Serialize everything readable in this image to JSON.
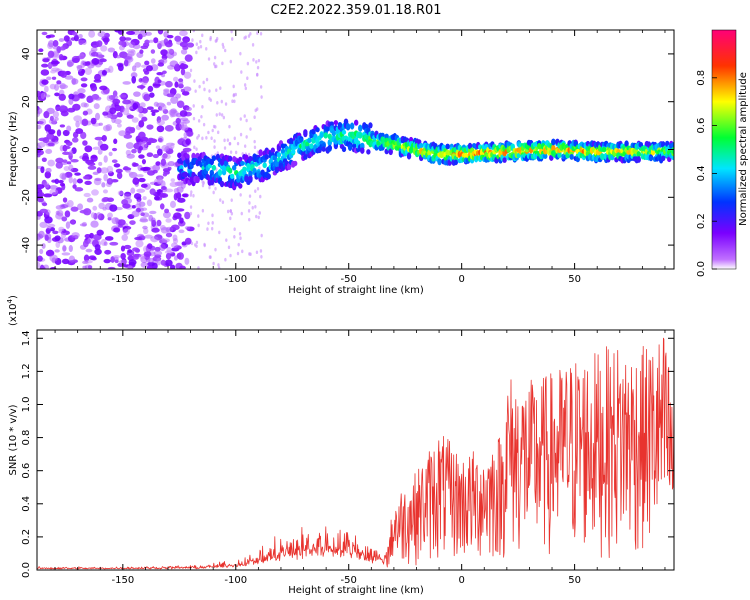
{
  "title": "C2E2.2022.359.01.18.R01",
  "chart_data": [
    {
      "type": "heatmap",
      "name": "spectrogram",
      "xlabel": "Height of straight line (km)",
      "ylabel": "Frequency (Hz)",
      "xlim": [
        -188,
        94
      ],
      "ylim": [
        -50,
        50
      ],
      "xticks": [
        -150,
        -100,
        -50,
        0,
        50
      ],
      "xtick_labels": [
        "-150",
        "-100",
        "-50",
        "0",
        "50"
      ],
      "yticks": [
        -40,
        -20,
        0,
        20,
        40
      ],
      "ytick_labels": [
        "-40",
        "-20",
        "0",
        "20",
        "40"
      ],
      "colorbar": {
        "label": "Normalized spectral amplitude",
        "range": [
          0,
          1
        ],
        "ticks": [
          0.0,
          0.2,
          0.4,
          0.6,
          0.8
        ],
        "tick_labels": [
          "0.0",
          "0.2",
          "0.4",
          "0.6",
          "0.8"
        ],
        "colors": [
          "#ffffff",
          "#7a00ff",
          "#0033ff",
          "#00e5ff",
          "#00ff33",
          "#ffff00",
          "#ff3300",
          "#ff0077"
        ]
      },
      "signal_track": [
        {
          "x": -120,
          "freq": -8,
          "amp": 0.35
        },
        {
          "x": -110,
          "freq": -8,
          "amp": 0.45
        },
        {
          "x": -100,
          "freq": -10,
          "amp": 0.5
        },
        {
          "x": -85,
          "freq": -6,
          "amp": 0.45
        },
        {
          "x": -70,
          "freq": 2,
          "amp": 0.5
        },
        {
          "x": -60,
          "freq": 5,
          "amp": 0.5
        },
        {
          "x": -50,
          "freq": 6,
          "amp": 0.55
        },
        {
          "x": -40,
          "freq": 4,
          "amp": 0.6
        },
        {
          "x": -25,
          "freq": 1,
          "amp": 0.7
        },
        {
          "x": -10,
          "freq": -2,
          "amp": 0.75
        },
        {
          "x": 0,
          "freq": -2,
          "amp": 0.8
        },
        {
          "x": 20,
          "freq": -1,
          "amp": 0.8
        },
        {
          "x": 40,
          "freq": 0,
          "amp": 0.8
        },
        {
          "x": 60,
          "freq": -1,
          "amp": 0.75
        },
        {
          "x": 80,
          "freq": -1,
          "amp": 0.7
        },
        {
          "x": 94,
          "freq": -1,
          "amp": 0.6
        }
      ]
    },
    {
      "type": "line",
      "name": "snr",
      "xlabel": "Height of straight line (km)",
      "ylabel": "SNR (10 * v/v)",
      "scale_label": "(x10",
      "scale_exponent": "4",
      "scale_close": ")",
      "xlim": [
        -188,
        94
      ],
      "ylim": [
        0,
        1.45
      ],
      "xticks": [
        -150,
        -100,
        -50,
        0,
        50
      ],
      "xtick_labels": [
        "-150",
        "-100",
        "-50",
        "0",
        "50"
      ],
      "yticks": [
        0.0,
        0.2,
        0.4,
        0.6,
        0.8,
        1.0,
        1.2,
        1.4
      ],
      "ytick_labels": [
        "0.0",
        "0.2",
        "0.4",
        "0.6",
        "0.8",
        "1.0",
        "1.2",
        "1.4"
      ],
      "line_color": "#e8332e",
      "envelope": {
        "x": [
          -188,
          -160,
          -130,
          -115,
          -100,
          -90,
          -80,
          -70,
          -60,
          -50,
          -40,
          -33,
          -30,
          -20,
          -10,
          0,
          10,
          18,
          20,
          30,
          40,
          50,
          60,
          70,
          80,
          90,
          94
        ],
        "y": [
          0.02,
          0.02,
          0.025,
          0.03,
          0.06,
          0.12,
          0.2,
          0.25,
          0.28,
          0.26,
          0.15,
          0.12,
          0.45,
          0.6,
          0.85,
          0.7,
          0.75,
          0.85,
          1.2,
          1.15,
          1.2,
          1.3,
          1.33,
          1.38,
          1.35,
          1.45,
          1.1
        ]
      }
    }
  ]
}
